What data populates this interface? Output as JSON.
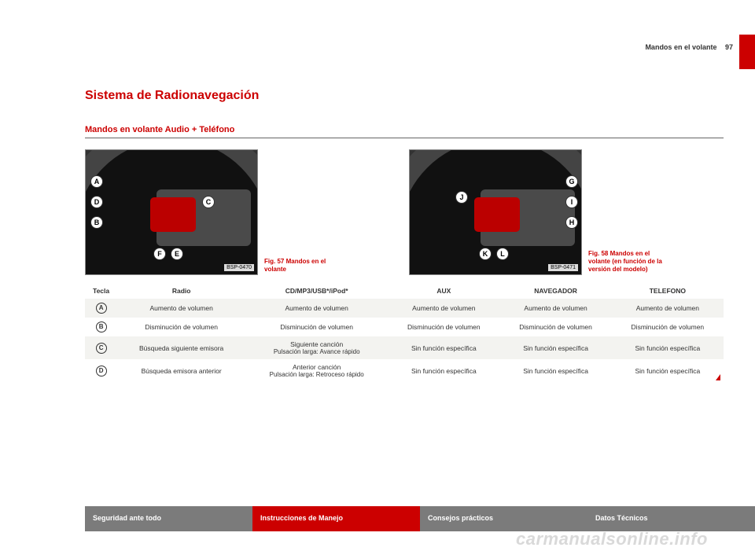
{
  "header": {
    "section": "Mandos en el volante",
    "page_number": "97"
  },
  "title": "Sistema de Radionavegación",
  "subtitle": "Mandos en volante Audio + Teléfono",
  "figures": {
    "left": {
      "code": "BSP-0470",
      "callouts": [
        "A",
        "D",
        "B",
        "C",
        "F",
        "E"
      ],
      "caption_label": "Fig. 57",
      "caption_text": "Mandos en el volante"
    },
    "right": {
      "code": "BSP-0471",
      "callouts": [
        "G",
        "J",
        "I",
        "H",
        "K",
        "L"
      ],
      "caption_label": "Fig. 58",
      "caption_text": "Mandos en el volante (en función de la versión del modelo)"
    }
  },
  "table": {
    "columns": [
      "Tecla",
      "Radio",
      "CD/MP3/USB*/iPod*",
      "AUX",
      "NAVEGADOR",
      "TELEFONO"
    ],
    "rows": [
      {
        "key": "A",
        "cells": [
          "Aumento de volumen",
          "Aumento de volumen",
          "Aumento de volumen",
          "Aumento de volumen",
          "Aumento de volumen"
        ],
        "band": true
      },
      {
        "key": "B",
        "cells": [
          "Disminución de volumen",
          "Disminución de volumen",
          "Disminución de volumen",
          "Disminución de volumen",
          "Disminución de volumen"
        ],
        "band": false
      },
      {
        "key": "C",
        "cells": [
          "Búsqueda siguiente emisora",
          "Siguiente canción\nPulsación larga: Avance rápido",
          "Sin función específica",
          "Sin función específica",
          "Sin función específica"
        ],
        "band": true
      },
      {
        "key": "D",
        "cells": [
          "Búsqueda emisora anterior",
          "Anterior canción\nPulsación larga: Retroceso rápido",
          "Sin función específica",
          "Sin función específica",
          "Sin función específica"
        ],
        "band": false
      }
    ]
  },
  "footer": {
    "tabs": [
      "Seguridad ante todo",
      "Instrucciones de Manejo",
      "Consejos prácticos",
      "Datos Técnicos"
    ],
    "active_index": 1
  },
  "watermark": "carmanualsonline.info",
  "colors": {
    "accent": "#c00",
    "band": "#f3f3f0",
    "tab_inactive": "#7b7b7b"
  }
}
